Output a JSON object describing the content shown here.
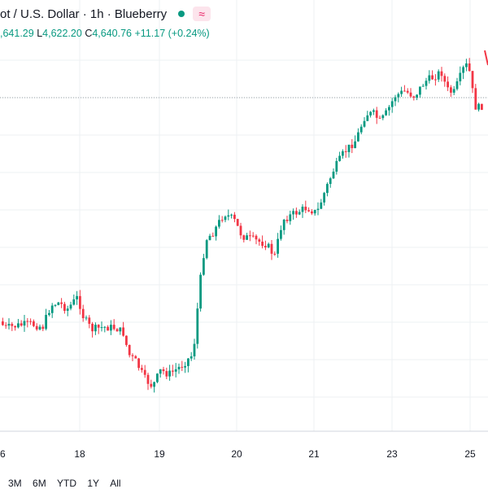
{
  "header": {
    "title": "ot / U.S. Dollar · 1h · Blueberry",
    "wave_symbol": "≈"
  },
  "ohlc": {
    "o_value": ",641.29",
    "h_label": "L",
    "l_value": "4,622.20",
    "c_label": "C",
    "c_value": "4,640.76",
    "change": "+11.17 (+0.24%)"
  },
  "ranges": [
    "3M",
    "6M",
    "YTD",
    "1Y",
    "All"
  ],
  "colors": {
    "up": "#089981",
    "down": "#f23645",
    "grid": "#eef0f3",
    "text": "#131722"
  },
  "chart_data": {
    "type": "candlestick",
    "x_tick_labels": [
      "6",
      "18",
      "19",
      "20",
      "21",
      "23",
      "25"
    ],
    "price_line": "dotted horizontal reference line near last price",
    "grid": true
  }
}
